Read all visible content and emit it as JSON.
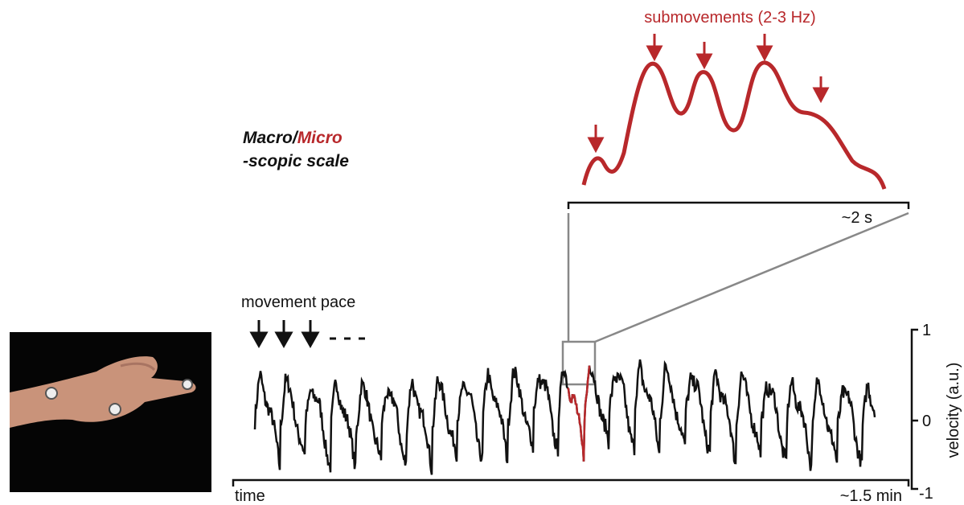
{
  "title": {
    "macro": "Macro/",
    "micro": "Micro",
    "scopic": "-scopic scale"
  },
  "annotations": {
    "movement_pace": "movement pace",
    "submovements": "submovements (2-3 Hz)",
    "zoom_duration": "~2 s",
    "time_label": "time",
    "total_duration": "~1.5 min"
  },
  "velocity_axis": {
    "label": "velocity (a.u.)",
    "ticks": [
      "1",
      "0",
      "-1"
    ]
  }
}
